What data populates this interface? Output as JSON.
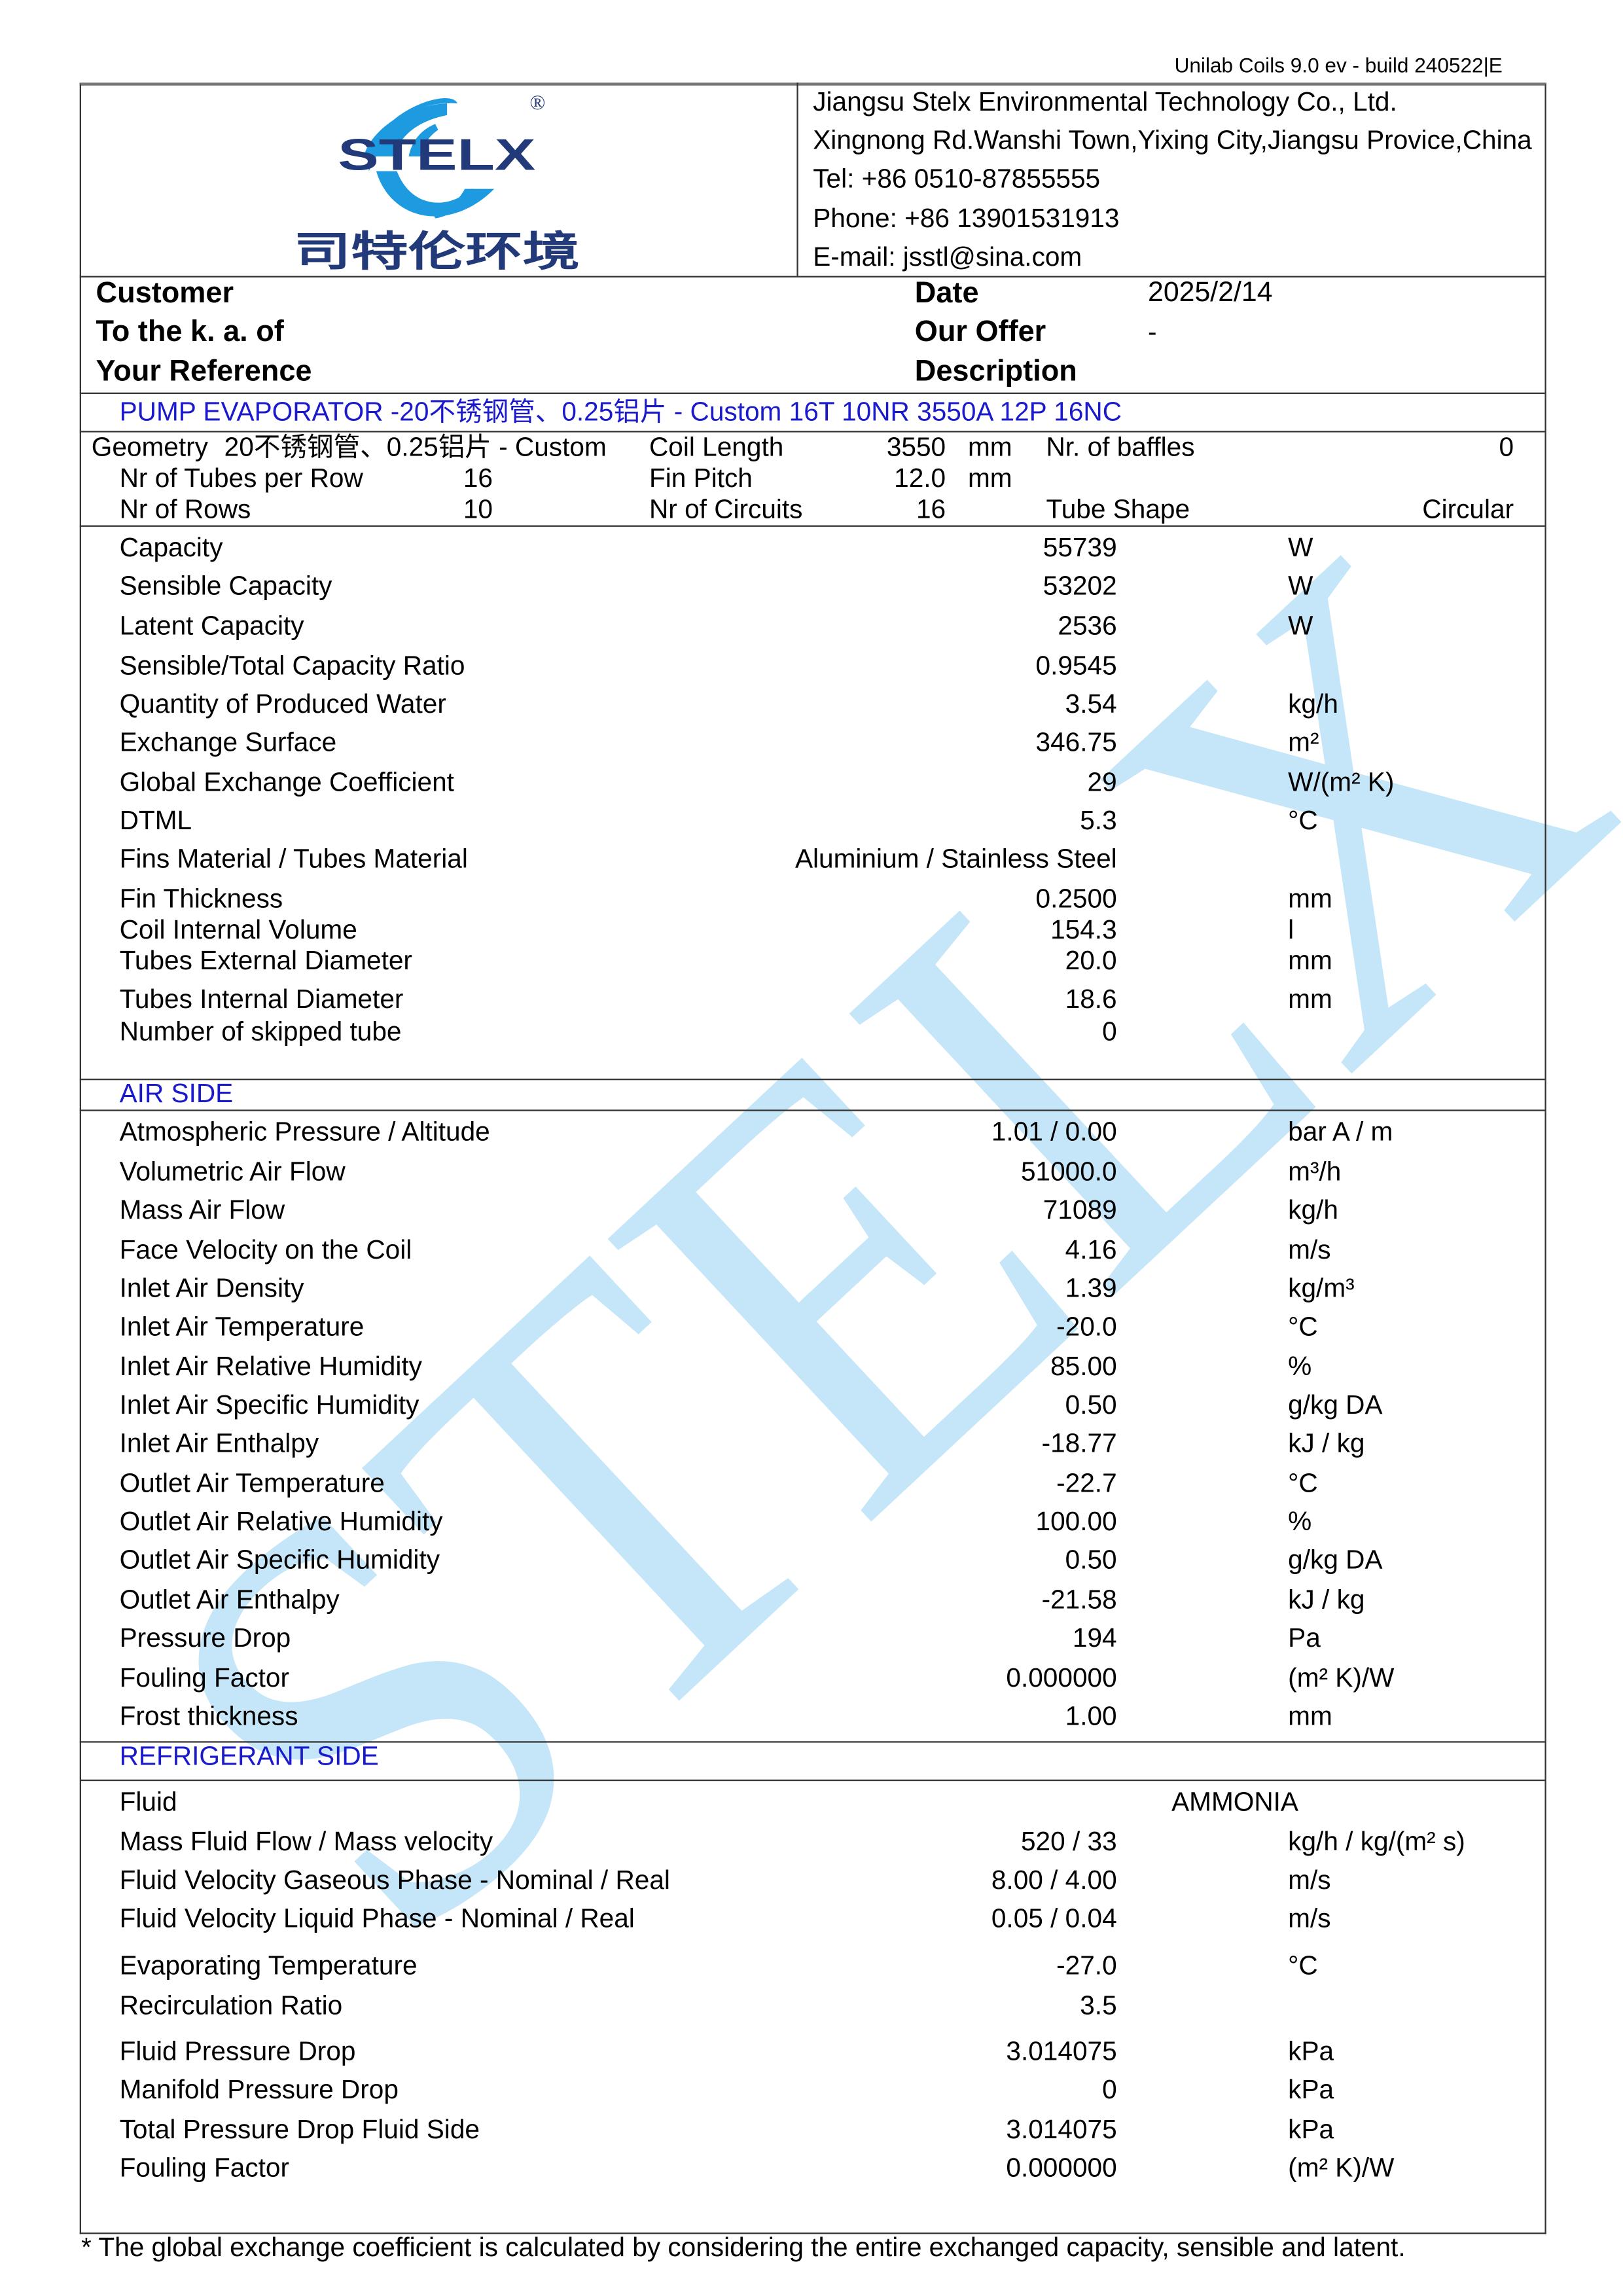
{
  "software_version": "Unilab Coils 9.0 ev - build 240522|E",
  "logo": {
    "text": "STELX",
    "chinese": "司特伦环境",
    "registered": "®",
    "colors": {
      "blue": "#1e9be0",
      "navy": "#233a7a"
    }
  },
  "company": {
    "name": "Jiangsu Stelx Environmental Technology Co., Ltd.",
    "address": "Xingnong Rd.Wanshi Town,Yixing City,Jiangsu Provice,China",
    "tel": "Tel: +86 0510-87855555",
    "phone": "Phone: +86 13901531913",
    "email": "E-mail: jsstl@sina.com"
  },
  "header": {
    "customer": "Customer",
    "to_the": "To the k. a. of",
    "your_reference": "Your Reference",
    "date_label": "Date",
    "date_value": "2025/2/14",
    "offer_label": "Our Offer",
    "offer_value": "-",
    "description_label": "Description"
  },
  "product_title": "PUMP EVAPORATOR -20不锈钢管、0.25铝片 - Custom 16T 10NR 3550A 12P 16NC",
  "geometry": {
    "geometry_label": "Geometry",
    "geometry_value": "20不锈钢管、0.25铝片 - Custom",
    "tubes_per_row_label": "Nr of Tubes per Row",
    "tubes_per_row": "16",
    "rows_label": "Nr of Rows",
    "rows": "10",
    "coil_length_label": "Coil Length",
    "coil_length": "3550",
    "coil_length_unit": "mm",
    "fin_pitch_label": "Fin Pitch",
    "fin_pitch": "12.0",
    "fin_pitch_unit": "mm",
    "circuits_label": "Nr of Circuits",
    "circuits": "16",
    "baffles_label": "Nr. of baffles",
    "baffles": "0",
    "tube_shape_label": "Tube Shape",
    "tube_shape": "Circular"
  },
  "performance": [
    {
      "label": "Capacity",
      "value": "55739",
      "unit": "W"
    },
    {
      "label": "Sensible Capacity",
      "value": "53202",
      "unit": "W"
    },
    {
      "label": "Latent Capacity",
      "value": "2536",
      "unit": "W"
    },
    {
      "label": "Sensible/Total Capacity Ratio",
      "value": "0.9545",
      "unit": ""
    },
    {
      "label": "Quantity of Produced Water",
      "value": "3.54",
      "unit": "kg/h"
    },
    {
      "label": "Exchange Surface",
      "value": "346.75",
      "unit": "m²"
    },
    {
      "label": "Global Exchange Coefficient",
      "value": "29",
      "unit": "W/(m² K)"
    },
    {
      "label": "DTML",
      "value": "5.3",
      "unit": "°C"
    },
    {
      "label": "Fins Material / Tubes Material",
      "value": "Aluminium / Stainless Steel",
      "unit": ""
    },
    {
      "label": "Fin Thickness",
      "value": "0.2500",
      "unit": "mm"
    },
    {
      "label": "Coil Internal Volume",
      "value": "154.3",
      "unit": "l"
    },
    {
      "label": "Tubes External Diameter",
      "value": "20.0",
      "unit": "mm"
    },
    {
      "label": "Tubes Internal Diameter",
      "value": "18.6",
      "unit": "mm"
    },
    {
      "label": "Number of skipped tube",
      "value": "0",
      "unit": ""
    }
  ],
  "air_side": {
    "title": "AIR SIDE",
    "rows": [
      {
        "label": "Atmospheric Pressure / Altitude",
        "value": "1.01 / 0.00",
        "unit": "bar A / m"
      },
      {
        "label": "Volumetric Air Flow",
        "value": "51000.0",
        "unit": "m³/h"
      },
      {
        "label": "Mass Air Flow",
        "value": "71089",
        "unit": "kg/h"
      },
      {
        "label": "Face Velocity on the Coil",
        "value": "4.16",
        "unit": "m/s"
      },
      {
        "label": "Inlet Air Density",
        "value": "1.39",
        "unit": "kg/m³"
      },
      {
        "label": "Inlet Air Temperature",
        "value": "-20.0",
        "unit": "°C"
      },
      {
        "label": "Inlet Air Relative Humidity",
        "value": "85.00",
        "unit": "%"
      },
      {
        "label": "Inlet Air Specific Humidity",
        "value": "0.50",
        "unit": "g/kg DA"
      },
      {
        "label": "Inlet Air Enthalpy",
        "value": "-18.77",
        "unit": "kJ / kg"
      },
      {
        "label": "Outlet Air Temperature",
        "value": "-22.7",
        "unit": "°C"
      },
      {
        "label": "Outlet Air Relative Humidity",
        "value": "100.00",
        "unit": "%"
      },
      {
        "label": "Outlet Air Specific Humidity",
        "value": "0.50",
        "unit": "g/kg DA"
      },
      {
        "label": "Outlet Air Enthalpy",
        "value": "-21.58",
        "unit": "kJ / kg"
      },
      {
        "label": "Pressure Drop",
        "value": "194",
        "unit": "Pa"
      },
      {
        "label": "Fouling Factor",
        "value": "0.000000",
        "unit": "(m² K)/W"
      },
      {
        "label": "Frost thickness",
        "value": "1.00",
        "unit": "mm"
      }
    ]
  },
  "refrigerant_side": {
    "title": "REFRIGERANT SIDE",
    "fluid_label": "Fluid",
    "fluid": "AMMONIA",
    "rows": [
      {
        "label": "Mass Fluid Flow / Mass velocity",
        "value": "520 / 33",
        "unit": "kg/h / kg/(m² s)"
      },
      {
        "label": "Fluid Velocity Gaseous Phase - Nominal / Real",
        "value": "8.00 / 4.00",
        "unit": "m/s"
      },
      {
        "label": "Fluid Velocity Liquid Phase - Nominal / Real",
        "value": "0.05 / 0.04",
        "unit": "m/s"
      },
      {
        "label": "Evaporating Temperature",
        "value": "-27.0",
        "unit": "°C"
      },
      {
        "label": "Recirculation Ratio",
        "value": "3.5",
        "unit": ""
      },
      {
        "label": "Fluid Pressure Drop",
        "value": "3.014075",
        "unit": "kPa"
      },
      {
        "label": "Manifold Pressure Drop",
        "value": "0",
        "unit": "kPa"
      },
      {
        "label": "Total Pressure Drop Fluid Side",
        "value": "3.014075",
        "unit": "kPa"
      },
      {
        "label": "Fouling Factor",
        "value": "0.000000",
        "unit": "(m² K)/W"
      }
    ]
  },
  "footnote": "* The global exchange coefficient is calculated by considering the entire  exchanged capacity, sensible and latent.",
  "watermark": {
    "text": "STELX",
    "color": "#c4e6f8"
  }
}
